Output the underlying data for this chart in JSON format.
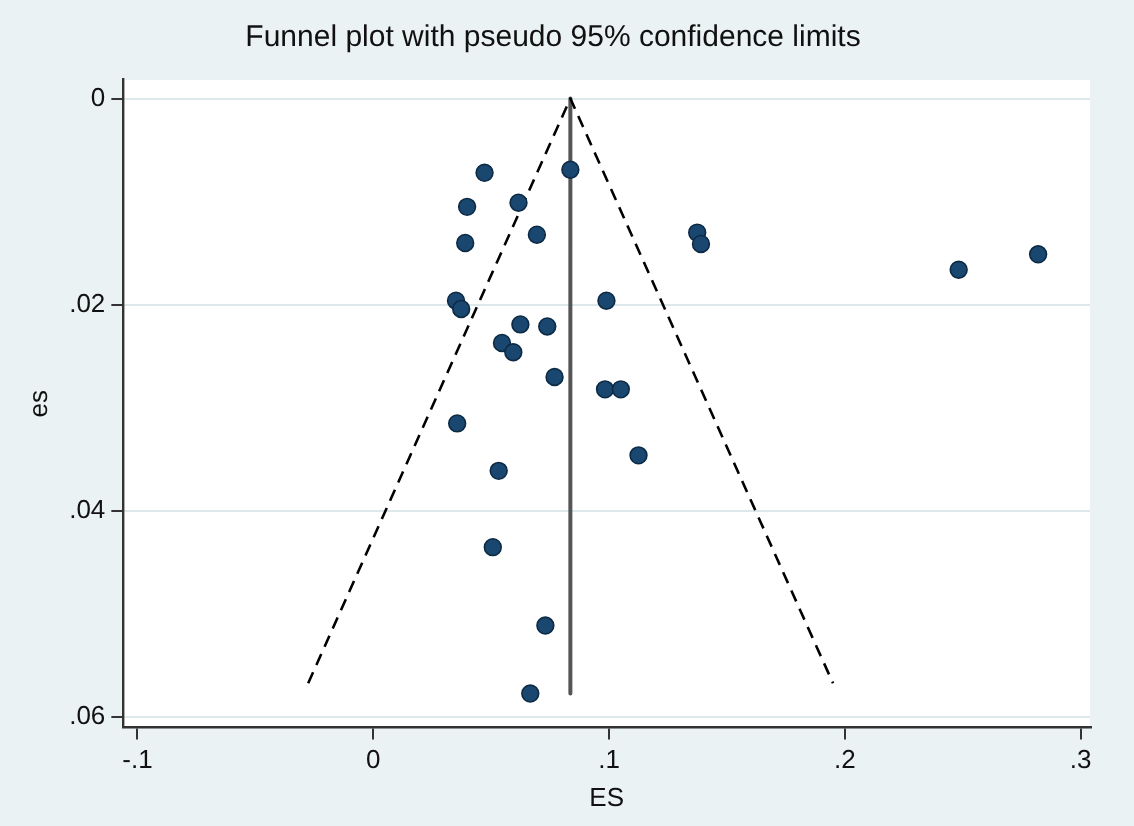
{
  "chart_data": {
    "type": "scatter",
    "title": "Funnel plot with pseudo 95% confidence limits",
    "xlabel": "ES",
    "ylabel": "es",
    "xlim": [
      -0.106,
      0.304
    ],
    "ylim": [
      0.061,
      -0.0018
    ],
    "xticks": [
      {
        "value": -0.1,
        "label": "-.1"
      },
      0,
      {
        "value": 0.1,
        "label": ".1"
      },
      {
        "value": 0.2,
        "label": ".2"
      },
      {
        "value": 0.3,
        "label": ".3"
      }
    ],
    "yticks": [
      0,
      {
        "value": 0.02,
        "label": ".02"
      },
      {
        "value": 0.04,
        "label": ".04"
      },
      {
        "value": 0.06,
        "label": ".06"
      }
    ],
    "grid": "y",
    "legend": false,
    "marker": "circle",
    "series": [
      {
        "type": "scatter",
        "color": "#1a476f",
        "x": [
          0.0472,
          0.0836,
          0.0398,
          0.0616,
          0.039,
          0.0694,
          0.0351,
          0.0373,
          0.0989,
          0.0624,
          0.0738,
          0.0546,
          0.0594,
          0.0769,
          0.0983,
          0.105,
          0.0356,
          0.1125,
          0.0532,
          0.0507,
          0.073,
          0.0666,
          0.1374,
          0.139,
          0.2483,
          0.282
        ],
        "values": [
          0.0072,
          0.0069,
          0.0105,
          0.0101,
          0.014,
          0.0132,
          0.0196,
          0.0204,
          0.0196,
          0.0219,
          0.0221,
          0.0237,
          0.0246,
          0.027,
          0.0282,
          0.0282,
          0.0315,
          0.0346,
          0.0361,
          0.0435,
          0.0511,
          0.0577,
          0.013,
          0.0141,
          0.0166,
          0.0151
        ]
      },
      {
        "type": "line",
        "color": "#000000",
        "line_style": "dashed",
        "marker": "none",
        "x": [
          -0.0276,
          0.0836,
          0.195
        ],
        "values": [
          0.0567,
          0,
          0.0567
        ]
      },
      {
        "type": "line",
        "color": "#555555",
        "line_style": "solid",
        "marker": "none",
        "x": [
          0.0836,
          0.0836
        ],
        "values": [
          0,
          0.0577
        ]
      }
    ]
  }
}
